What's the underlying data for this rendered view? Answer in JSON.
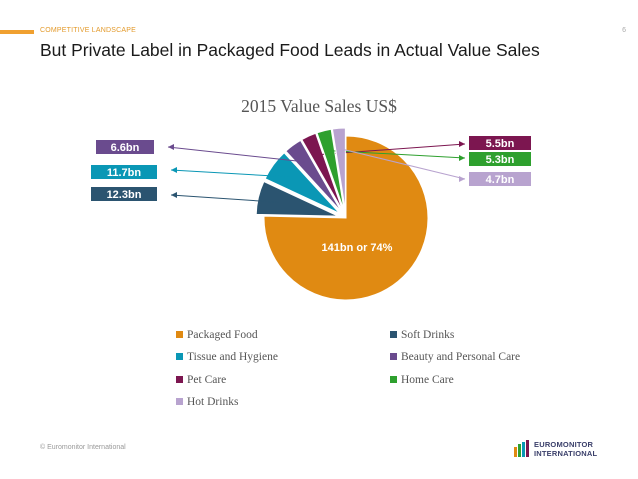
{
  "header": {
    "section": "COMPETITIVE LANDSCAPE",
    "page_number": "6",
    "headline": "But Private Label in Packaged Food Leads in Actual Value Sales"
  },
  "footer": {
    "copyright": "© Euromonitor International"
  },
  "logo": {
    "line1": "EUROMONITOR",
    "line2": "INTERNATIONAL"
  },
  "chart_data": {
    "type": "pie",
    "title": "2015 Value Sales US$",
    "slices": [
      {
        "name": "Packaged Food",
        "value": 141,
        "label": "141bn  or 74%",
        "color": "#e08a12"
      },
      {
        "name": "Soft Drinks",
        "value": 12.3,
        "label": "12.3bn",
        "color": "#2b5470"
      },
      {
        "name": "Tissue and Hygiene",
        "value": 11.7,
        "label": "11.7bn",
        "color": "#0a97b5"
      },
      {
        "name": "Beauty and Personal Care",
        "value": 6.6,
        "label": "6.6bn",
        "color": "#6a4b8e"
      },
      {
        "name": "Pet Care",
        "value": 5.5,
        "label": "5.5bn",
        "color": "#7c1650"
      },
      {
        "name": "Home Care",
        "value": 5.3,
        "label": "5.3bn",
        "color": "#2ea02e"
      },
      {
        "name": "Hot Drinks",
        "value": 4.7,
        "label": "4.7bn",
        "color": "#b8a3cf"
      }
    ],
    "legend_placement": "bottom"
  }
}
